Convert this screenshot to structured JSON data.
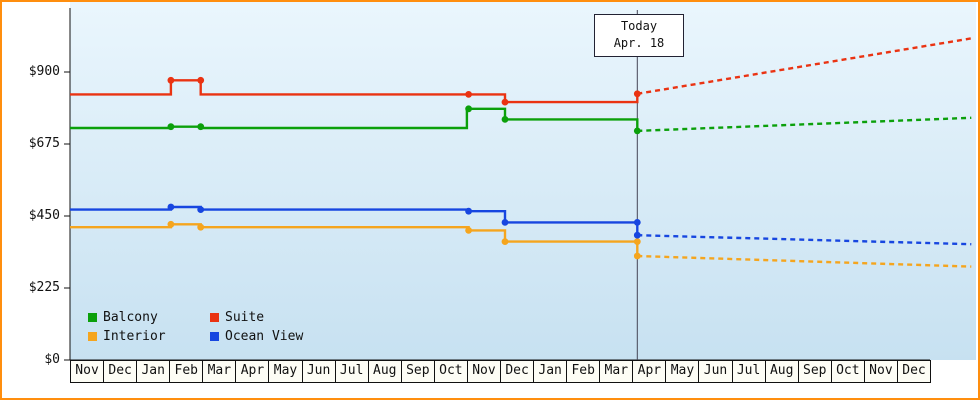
{
  "today_marker": {
    "line1": "Today",
    "line2": "Apr. 18"
  },
  "y_axis": {
    "tick_labels": [
      "$900",
      "$675",
      "$450",
      "$225",
      "$0"
    ]
  },
  "legend": {
    "items": [
      {
        "label": "Balcony",
        "color": "#0ba00b"
      },
      {
        "label": "Suite",
        "color": "#ea3312"
      },
      {
        "label": "Interior",
        "color": "#f5a51e"
      },
      {
        "label": "Ocean View",
        "color": "#1746e0"
      }
    ]
  },
  "colors": {
    "frame_border": "#ff8e0e",
    "plot_bg_top": "#eaf6fd",
    "plot_bg_bottom": "#c7e1f1",
    "axis": "#111111",
    "today_line": "#444455",
    "month_cell_bg": "#fdfdf5"
  },
  "chart_data": {
    "type": "line",
    "title": "",
    "grid": false,
    "legend_position": "bottom-left",
    "categories": [
      "Nov",
      "Dec",
      "Jan",
      "Feb",
      "Mar",
      "Apr",
      "May",
      "Jun",
      "Jul",
      "Aug",
      "Sep",
      "Oct",
      "Nov",
      "Dec",
      "Jan",
      "Feb",
      "Mar",
      "Apr",
      "May",
      "Jun",
      "Jul",
      "Aug",
      "Sep",
      "Oct",
      "Nov",
      "Dec"
    ],
    "y_ticks": [
      900,
      675,
      450,
      225,
      0
    ],
    "ylim": [
      0,
      1119
    ],
    "today": {
      "x_index": 17.15,
      "label": "Today Apr. 18"
    },
    "series": [
      {
        "name": "Balcony",
        "color": "#0ba00b",
        "solid": [
          [
            0,
            725
          ],
          [
            3.05,
            725
          ],
          [
            3.05,
            729
          ],
          [
            3.95,
            729
          ],
          [
            3.95,
            725
          ],
          [
            12.0,
            725
          ],
          [
            12.0,
            785
          ],
          [
            13.15,
            785
          ],
          [
            13.15,
            752
          ],
          [
            17.15,
            752
          ],
          [
            17.15,
            716
          ]
        ],
        "forecast_dotted": [
          [
            17.15,
            716
          ],
          [
            27.25,
            757
          ]
        ],
        "markers": [
          [
            3.05,
            729
          ],
          [
            3.95,
            729
          ],
          [
            12.05,
            785
          ],
          [
            13.15,
            752
          ],
          [
            17.15,
            716
          ]
        ]
      },
      {
        "name": "Suite",
        "color": "#ea3312",
        "solid": [
          [
            0,
            830
          ],
          [
            3.05,
            830
          ],
          [
            3.05,
            874
          ],
          [
            3.95,
            874
          ],
          [
            3.95,
            830
          ],
          [
            13.15,
            830
          ],
          [
            13.15,
            806
          ],
          [
            17.15,
            806
          ],
          [
            17.15,
            832
          ]
        ],
        "forecast_dotted": [
          [
            17.15,
            832
          ],
          [
            27.25,
            1005
          ]
        ],
        "markers": [
          [
            3.05,
            874
          ],
          [
            3.95,
            874
          ],
          [
            12.05,
            830
          ],
          [
            13.15,
            806
          ],
          [
            17.15,
            832
          ]
        ]
      },
      {
        "name": "Interior",
        "color": "#f5a51e",
        "solid": [
          [
            0,
            415
          ],
          [
            3.05,
            415
          ],
          [
            3.05,
            424
          ],
          [
            3.95,
            424
          ],
          [
            3.95,
            415
          ],
          [
            12.05,
            415
          ],
          [
            12.05,
            405
          ],
          [
            13.15,
            405
          ],
          [
            13.15,
            370
          ],
          [
            17.15,
            370
          ],
          [
            17.15,
            325
          ]
        ],
        "forecast_dotted": [
          [
            17.15,
            325
          ],
          [
            27.25,
            292
          ]
        ],
        "markers": [
          [
            3.05,
            424
          ],
          [
            3.95,
            415
          ],
          [
            12.05,
            405
          ],
          [
            13.15,
            370
          ],
          [
            17.15,
            370
          ],
          [
            17.15,
            325
          ]
        ]
      },
      {
        "name": "Ocean View",
        "color": "#1746e0",
        "solid": [
          [
            0,
            470
          ],
          [
            3.05,
            470
          ],
          [
            3.05,
            478
          ],
          [
            3.95,
            478
          ],
          [
            3.95,
            470
          ],
          [
            12.05,
            470
          ],
          [
            12.05,
            465
          ],
          [
            13.15,
            465
          ],
          [
            13.15,
            430
          ],
          [
            17.15,
            430
          ],
          [
            17.15,
            390
          ]
        ],
        "forecast_dotted": [
          [
            17.15,
            390
          ],
          [
            27.25,
            362
          ]
        ],
        "markers": [
          [
            3.05,
            478
          ],
          [
            3.95,
            470
          ],
          [
            12.05,
            465
          ],
          [
            13.15,
            430
          ],
          [
            17.15,
            430
          ],
          [
            17.15,
            390
          ]
        ]
      }
    ]
  }
}
